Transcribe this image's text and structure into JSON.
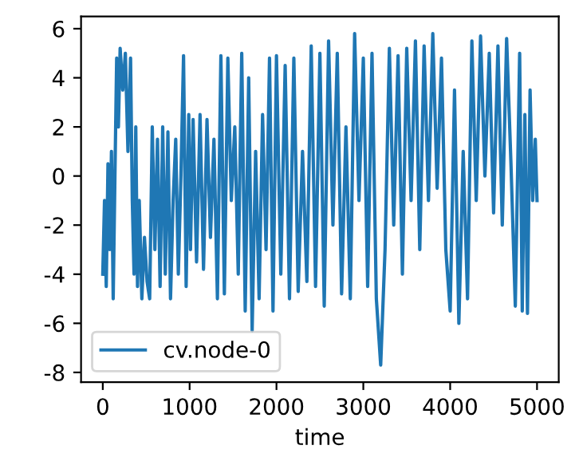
{
  "chart_data": {
    "type": "line",
    "xlabel": "time",
    "legend": "bottom left",
    "grid": false,
    "xlim": [
      -250,
      5250
    ],
    "ylim": [
      -8.4,
      6.5
    ],
    "xticks": [
      0,
      1000,
      2000,
      3000,
      4000,
      5000
    ],
    "yticks": [
      -8,
      -6,
      -4,
      -2,
      0,
      2,
      4,
      6
    ],
    "series": [
      {
        "name": "cv.node-0",
        "color": "#1f77b4",
        "x": [
          0,
          20,
          40,
          60,
          80,
          100,
          120,
          140,
          160,
          180,
          200,
          230,
          260,
          290,
          320,
          340,
          360,
          380,
          400,
          420,
          450,
          480,
          510,
          540,
          570,
          600,
          630,
          660,
          690,
          720,
          750,
          780,
          810,
          840,
          870,
          900,
          930,
          960,
          990,
          1010,
          1040,
          1080,
          1120,
          1160,
          1200,
          1240,
          1280,
          1320,
          1360,
          1400,
          1440,
          1480,
          1520,
          1560,
          1600,
          1640,
          1680,
          1720,
          1760,
          1800,
          1840,
          1880,
          1920,
          1960,
          2000,
          2050,
          2100,
          2150,
          2200,
          2250,
          2300,
          2350,
          2400,
          2450,
          2500,
          2550,
          2600,
          2650,
          2700,
          2750,
          2800,
          2850,
          2900,
          2950,
          3000,
          3050,
          3100,
          3150,
          3200,
          3250,
          3300,
          3350,
          3400,
          3450,
          3500,
          3550,
          3600,
          3650,
          3700,
          3750,
          3800,
          3850,
          3900,
          3950,
          4000,
          4050,
          4100,
          4150,
          4200,
          4250,
          4300,
          4350,
          4400,
          4450,
          4500,
          4550,
          4600,
          4650,
          4700,
          4750,
          4800,
          4830,
          4860,
          4890,
          4920,
          4950,
          4980,
          5000
        ],
        "values": [
          -4,
          -1,
          -4.5,
          0.5,
          -3,
          1,
          -5,
          0,
          4.8,
          2,
          5.2,
          3.5,
          5,
          1,
          4.8,
          -1,
          -4,
          2,
          -4.5,
          -1,
          -5,
          -2.5,
          -4.3,
          -5,
          2,
          -3,
          1.5,
          -4.5,
          2,
          -4,
          1.8,
          -5,
          -1,
          1.5,
          -4,
          0,
          4.9,
          -4.5,
          2.5,
          -3,
          2.3,
          -3.5,
          2.5,
          -3.8,
          2.3,
          -2.5,
          1.5,
          -5,
          4.9,
          -4.8,
          4.8,
          -1,
          2,
          -4,
          5,
          -5.5,
          4,
          -6.3,
          1,
          -5,
          2.5,
          -3,
          4.8,
          -5.5,
          4.9,
          -4,
          4.5,
          -5,
          4.8,
          -4.7,
          1,
          -4.3,
          5.3,
          -4.5,
          5,
          -5.3,
          5.5,
          -2,
          5,
          -4.8,
          2,
          -5,
          5.8,
          -1,
          4.8,
          -4.5,
          5,
          -5,
          -7.7,
          -3,
          5.2,
          -2,
          4.9,
          -4,
          5.2,
          -1,
          5.5,
          -3,
          5.3,
          -1,
          5.8,
          -0.5,
          4.8,
          -3,
          -5.5,
          3.5,
          -6,
          1,
          -5,
          5.5,
          -1,
          5.7,
          0,
          5,
          -1.5,
          5.3,
          -2,
          5.6,
          0.5,
          -5.3,
          5,
          -5.5,
          2.5,
          -5.6,
          3.5,
          -1,
          1.5,
          -1
        ]
      }
    ]
  }
}
